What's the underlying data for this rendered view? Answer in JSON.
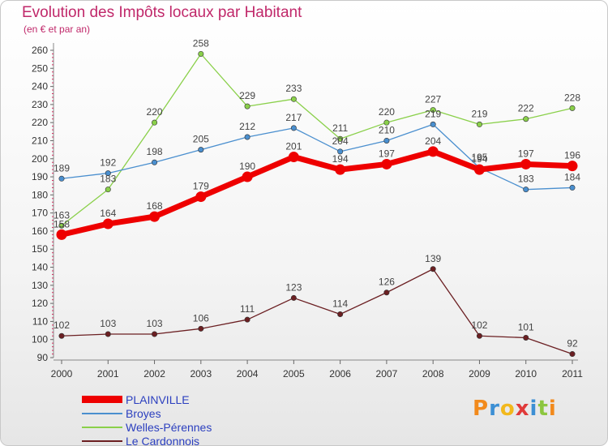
{
  "header": {
    "title": "Evolution des Impôts locaux par Habitant",
    "subtitle": "(en € et par an)"
  },
  "logo": {
    "letters": [
      {
        "ch": "P",
        "color": "#f28a1c"
      },
      {
        "ch": "r",
        "color": "#3c8fd4"
      },
      {
        "ch": "o",
        "color": "#f2b81c"
      },
      {
        "ch": "x",
        "color": "#e03a3a"
      },
      {
        "ch": "i",
        "color": "#3c8fd4"
      },
      {
        "ch": "t",
        "color": "#8cc63f"
      },
      {
        "ch": "i",
        "color": "#f28a1c"
      }
    ]
  },
  "chart_data": {
    "type": "line",
    "title": "Evolution des Impôts locaux par Habitant",
    "subtitle": "(en € et par an)",
    "xlabel": "",
    "ylabel": "",
    "x": [
      "2000",
      "2001",
      "2002",
      "2003",
      "2004",
      "2005",
      "2006",
      "2007",
      "2008",
      "2009",
      "2010",
      "2011"
    ],
    "ylim": [
      90,
      260
    ],
    "yticks": [
      "90",
      "100",
      "110",
      "120",
      "130",
      "140",
      "150",
      "160",
      "170",
      "180",
      "190",
      "200",
      "210",
      "220",
      "230",
      "240",
      "250",
      "260"
    ],
    "grid": "off",
    "legend_position": "bottom-left",
    "series": [
      {
        "name": "PLAINVILLE",
        "color": "#ee0000",
        "values": [
          158,
          164,
          168,
          179,
          190,
          201,
          194,
          197,
          204,
          194,
          197,
          196
        ],
        "labels": [
          "158",
          "164",
          "168",
          "179",
          "190",
          "201",
          "194",
          "197",
          "204",
          "194",
          "197",
          "196"
        ]
      },
      {
        "name": "Broyes",
        "color": "#4a8fcf",
        "values": [
          189,
          192,
          198,
          205,
          212,
          217,
          204,
          210,
          219,
          195,
          183,
          184
        ],
        "labels": [
          "189",
          "192",
          "198",
          "205",
          "212",
          "217",
          "204",
          "210",
          "219",
          "195",
          "183",
          "184"
        ]
      },
      {
        "name": "Welles-Pérennes",
        "color": "#8ad04a",
        "values": [
          163,
          183,
          220,
          258,
          229,
          233,
          211,
          220,
          227,
          219,
          222,
          228
        ],
        "labels": [
          "163",
          "183",
          "220",
          "258",
          "229",
          "233",
          "211",
          "220",
          "227",
          "219",
          "222",
          "228"
        ]
      },
      {
        "name": "Le Cardonnois",
        "color": "#6b1f22",
        "values": [
          102,
          103,
          103,
          106,
          111,
          123,
          114,
          126,
          139,
          102,
          101,
          92
        ],
        "labels": [
          "102",
          "103",
          "103",
          "106",
          "111",
          "123",
          "114",
          "126",
          "139",
          "102",
          "101",
          "92"
        ]
      }
    ]
  }
}
